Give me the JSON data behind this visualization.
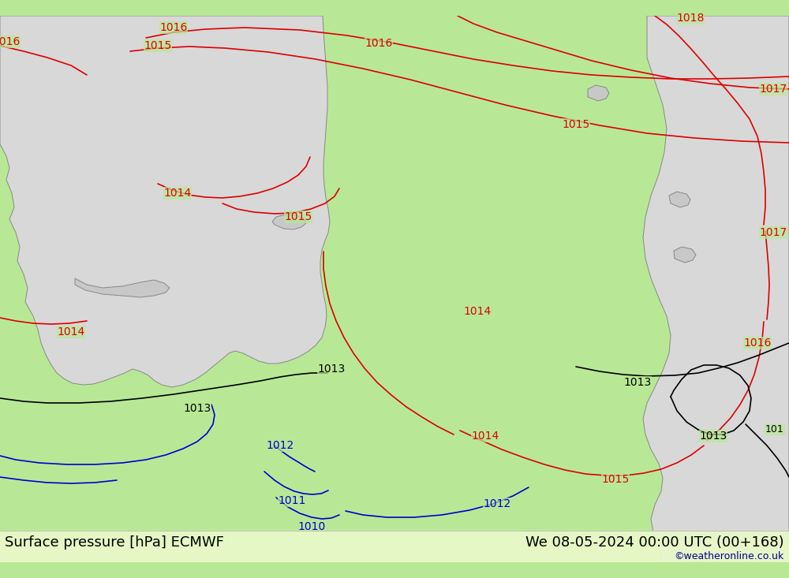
{
  "title_left": "Surface pressure [hPa] ECMWF",
  "title_right": "We 08-05-2024 00:00 UTC (00+168)",
  "watermark": "©weatheronline.co.uk",
  "bg_color": "#b8e896",
  "land_color": "#d8d8d8",
  "land_edge_color": "#888888",
  "sea_color": "#d0d8e8",
  "red_color": "#dd0000",
  "blue_color": "#0000cc",
  "black_color": "#000000",
  "title_fontsize": 13,
  "watermark_fontsize": 9,
  "fig_width": 10.0,
  "fig_height": 7.33
}
